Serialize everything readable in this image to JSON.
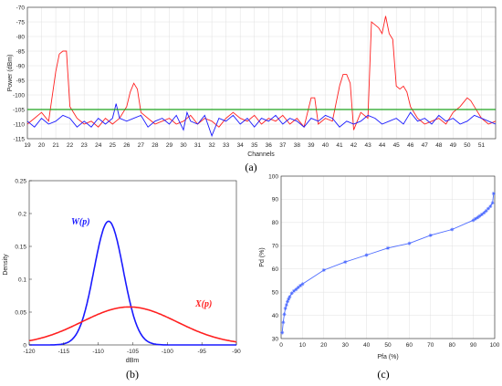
{
  "figure": {
    "panels": [
      "(a)",
      "(b)",
      "(c)"
    ]
  },
  "colors": {
    "red": "#ff2020",
    "blue": "#1a1aff",
    "green": "#1fa51f",
    "pd_curve": "#4d6bff",
    "grid": "#e0e0e0",
    "axis": "#262626"
  },
  "chart_data": [
    {
      "id": "a",
      "type": "line",
      "xlabel": "Channels",
      "ylabel": "Power (dBm)",
      "ylim": [
        -115,
        -70
      ],
      "yticks": [
        -70,
        -75,
        -80,
        -85,
        -90,
        -95,
        -100,
        -105,
        -110,
        -115
      ],
      "xticks": [
        19,
        20,
        21,
        22,
        23,
        24,
        25,
        26,
        27,
        28,
        29,
        30,
        31,
        32,
        33,
        34,
        35,
        36,
        37,
        38,
        39,
        40,
        41,
        42,
        43,
        44,
        45,
        46,
        47,
        48,
        49,
        50,
        51
      ],
      "xlim": [
        19,
        52
      ],
      "grid": true,
      "series": [
        {
          "color": "red",
          "x": [
            19,
            19.5,
            20,
            20.5,
            21,
            21.25,
            21.5,
            21.75,
            22,
            22.5,
            23,
            23.5,
            24,
            24.5,
            25,
            25.5,
            26,
            26.25,
            26.5,
            26.75,
            27,
            27.5,
            28,
            28.5,
            29,
            29.5,
            30,
            30.5,
            31,
            31.5,
            32,
            32.5,
            33,
            33.5,
            34,
            34.5,
            35,
            35.5,
            36,
            36.5,
            37,
            37.5,
            38,
            38.5,
            39,
            39.25,
            39.5,
            40,
            40.5,
            41,
            41.25,
            41.5,
            41.75,
            42,
            42.5,
            43,
            43.25,
            43.5,
            43.75,
            44,
            44.25,
            44.5,
            44.75,
            45,
            45.25,
            45.5,
            45.75,
            46,
            46.5,
            47,
            47.5,
            48,
            48.5,
            49,
            49.5,
            50,
            50.25,
            50.5,
            51,
            51.5,
            52
          ],
          "y": [
            -110,
            -108,
            -106,
            -109,
            -92,
            -86,
            -85,
            -85,
            -104,
            -108,
            -110,
            -109,
            -111,
            -108,
            -110,
            -108,
            -104,
            -99,
            -96,
            -98,
            -106,
            -108,
            -110,
            -109,
            -108,
            -110,
            -109,
            -107,
            -110,
            -108,
            -109,
            -111,
            -108,
            -106,
            -108,
            -109,
            -107,
            -110,
            -108,
            -109,
            -107,
            -110,
            -108,
            -111,
            -101,
            -101,
            -110,
            -108,
            -109,
            -97,
            -93,
            -93,
            -96,
            -112,
            -106,
            -108,
            -75,
            -76,
            -77,
            -79,
            -73,
            -79,
            -81,
            -97,
            -98,
            -97,
            -99,
            -104,
            -108,
            -110,
            -109,
            -108,
            -110,
            -106,
            -104,
            -101,
            -102,
            -104,
            -108,
            -110,
            -109
          ]
        },
        {
          "color": "blue",
          "x": [
            19,
            19.5,
            20,
            20.5,
            21,
            21.5,
            22,
            22.5,
            23,
            23.5,
            24,
            24.5,
            25,
            25.25,
            25.5,
            26,
            26.5,
            27,
            27.5,
            28,
            28.5,
            29,
            29.5,
            30,
            30.25,
            30.5,
            31,
            31.5,
            32,
            32.5,
            33,
            33.5,
            34,
            34.5,
            35,
            35.5,
            36,
            36.5,
            37,
            37.5,
            38,
            38.5,
            39,
            39.5,
            40,
            40.5,
            41,
            41.5,
            42,
            42.5,
            43,
            43.5,
            44,
            44.5,
            45,
            45.5,
            46,
            46.5,
            47,
            47.5,
            48,
            48.5,
            49,
            49.5,
            50,
            50.5,
            51,
            51.5,
            52
          ],
          "y": [
            -109,
            -111,
            -108,
            -110,
            -109,
            -107,
            -108,
            -111,
            -109,
            -111,
            -108,
            -110,
            -108,
            -103,
            -108,
            -109,
            -108,
            -107,
            -111,
            -109,
            -108,
            -110,
            -107,
            -112,
            -106,
            -109,
            -110,
            -107,
            -114,
            -108,
            -109,
            -107,
            -110,
            -108,
            -111,
            -108,
            -109,
            -107,
            -110,
            -108,
            -109,
            -111,
            -108,
            -109,
            -107,
            -108,
            -111,
            -109,
            -110,
            -109,
            -107,
            -108,
            -110,
            -109,
            -108,
            -110,
            -106,
            -109,
            -108,
            -110,
            -107,
            -109,
            -108,
            -110,
            -109,
            -107,
            -108,
            -109,
            -110
          ]
        },
        {
          "color": "green",
          "x": [
            19,
            52
          ],
          "y": [
            -105,
            -105
          ]
        }
      ]
    },
    {
      "id": "b",
      "type": "line",
      "xlabel": "dBm",
      "ylabel": "Density",
      "xlim": [
        -120,
        -90
      ],
      "ylim": [
        0,
        0.25
      ],
      "xticks": [
        -120,
        -115,
        -110,
        -105,
        -100,
        -95,
        -90
      ],
      "yticks": [
        0,
        0.05,
        0.1,
        0.15,
        0.2,
        0.25
      ],
      "grid": false,
      "series": [
        {
          "name": "W(p)",
          "color": "blue",
          "distribution": "normal",
          "mean": -108.5,
          "std": 2.12
        },
        {
          "name": "X(p)",
          "color": "red",
          "distribution": "normal",
          "mean": -105.5,
          "std": 6.9
        }
      ]
    },
    {
      "id": "c",
      "type": "line",
      "xlabel": "Pfa (%)",
      "ylabel": "Pd (%)",
      "xlim": [
        0,
        100
      ],
      "ylim": [
        30,
        100
      ],
      "xticks": [
        0,
        10,
        20,
        30,
        40,
        50,
        60,
        70,
        80,
        90,
        100
      ],
      "yticks": [
        30,
        40,
        50,
        60,
        70,
        80,
        90,
        100
      ],
      "grid": true,
      "series": [
        {
          "color": "pd_curve",
          "x": [
            0.5,
            1,
            1.5,
            2,
            2.5,
            3,
            3.5,
            4,
            5,
            6,
            7,
            8,
            9,
            10,
            20,
            30,
            40,
            50,
            60,
            70,
            80,
            90,
            91,
            92,
            93,
            94,
            95,
            96,
            97,
            98,
            99,
            99.5
          ],
          "y": [
            32.5,
            37,
            40.5,
            43,
            44.5,
            46,
            47,
            48,
            49.5,
            50.5,
            51.2,
            52,
            52.8,
            53.5,
            59.5,
            63,
            66,
            69,
            71,
            74.5,
            77,
            81,
            81.6,
            82.2,
            82.8,
            83.5,
            84.2,
            85,
            86,
            87,
            88.5,
            92.5
          ]
        }
      ]
    }
  ]
}
